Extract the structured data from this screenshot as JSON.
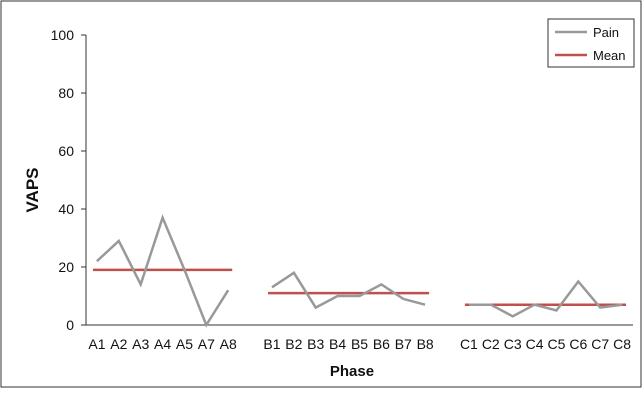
{
  "chart_data": {
    "type": "line",
    "title": "",
    "xlabel": "Phase",
    "ylabel": "VAPS",
    "ylim": [
      0,
      100
    ],
    "yticks": [
      0,
      20,
      40,
      60,
      80,
      100
    ],
    "grid": false,
    "legend_position": "top-right",
    "categories": [
      "A1",
      "A2",
      "A3",
      "A4",
      "A5",
      "A7",
      "A8",
      "",
      "B1",
      "B2",
      "B3",
      "B4",
      "B5",
      "B6",
      "B7",
      "B8",
      "",
      "C1",
      "C2",
      "C3",
      "C4",
      "C5",
      "C6",
      "C7",
      "C8"
    ],
    "phases": [
      {
        "name": "A",
        "labels": [
          "A1",
          "A2",
          "A3",
          "A4",
          "A5",
          "A7",
          "A8"
        ],
        "pain": [
          22,
          29,
          14,
          37,
          19,
          0,
          12
        ],
        "mean": 19
      },
      {
        "name": "B",
        "labels": [
          "B1",
          "B2",
          "B3",
          "B4",
          "B5",
          "B6",
          "B7",
          "B8"
        ],
        "pain": [
          13,
          18,
          6,
          10,
          10,
          14,
          9,
          7
        ],
        "mean": 11
      },
      {
        "name": "C",
        "labels": [
          "C1",
          "C2",
          "C3",
          "C4",
          "C5",
          "C6",
          "C7",
          "C8"
        ],
        "pain": [
          7,
          7,
          3,
          7,
          5,
          15,
          6,
          7
        ],
        "mean": 7
      }
    ],
    "series": [
      {
        "name": "Pain",
        "color": "#999999"
      },
      {
        "name": "Mean",
        "color": "#c0504d"
      }
    ]
  }
}
